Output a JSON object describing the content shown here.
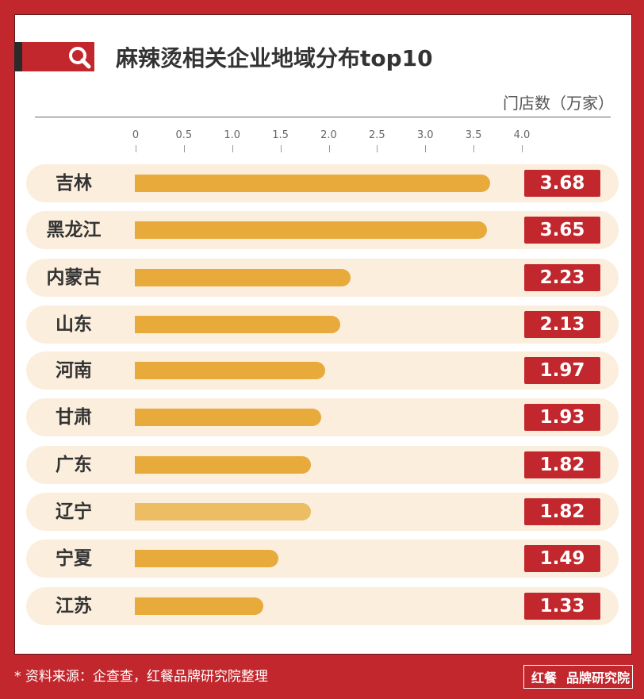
{
  "header": {
    "title": "麻辣烫相关企业地域分布top10",
    "icon": "search-icon"
  },
  "chart_data": {
    "type": "bar",
    "orientation": "horizontal",
    "title": "麻辣烫相关企业地域分布top10",
    "xlabel": "门店数（万家）",
    "xlim": [
      0,
      4.0
    ],
    "ticks": [
      "0",
      "0.5",
      "1.0",
      "1.5",
      "2.0",
      "2.5",
      "3.0",
      "3.5",
      "4.0"
    ],
    "categories": [
      "吉林",
      "黑龙江",
      "内蒙古",
      "山东",
      "河南",
      "甘肃",
      "广东",
      "辽宁",
      "宁夏",
      "江苏"
    ],
    "values": [
      3.68,
      3.65,
      2.23,
      2.13,
      1.97,
      1.93,
      1.82,
      1.82,
      1.49,
      1.33
    ],
    "labels": [
      "3.68",
      "3.65",
      "2.23",
      "2.13",
      "1.97",
      "1.93",
      "1.82",
      "1.82",
      "1.49",
      "1.33"
    ],
    "bar_color": "#e8aa3a",
    "label_color": "#c1272d"
  },
  "footer": {
    "source": "* 资料来源：企查查，红餐品牌研究院整理",
    "logo_left": "红餐",
    "logo_right": "品牌研究院"
  }
}
